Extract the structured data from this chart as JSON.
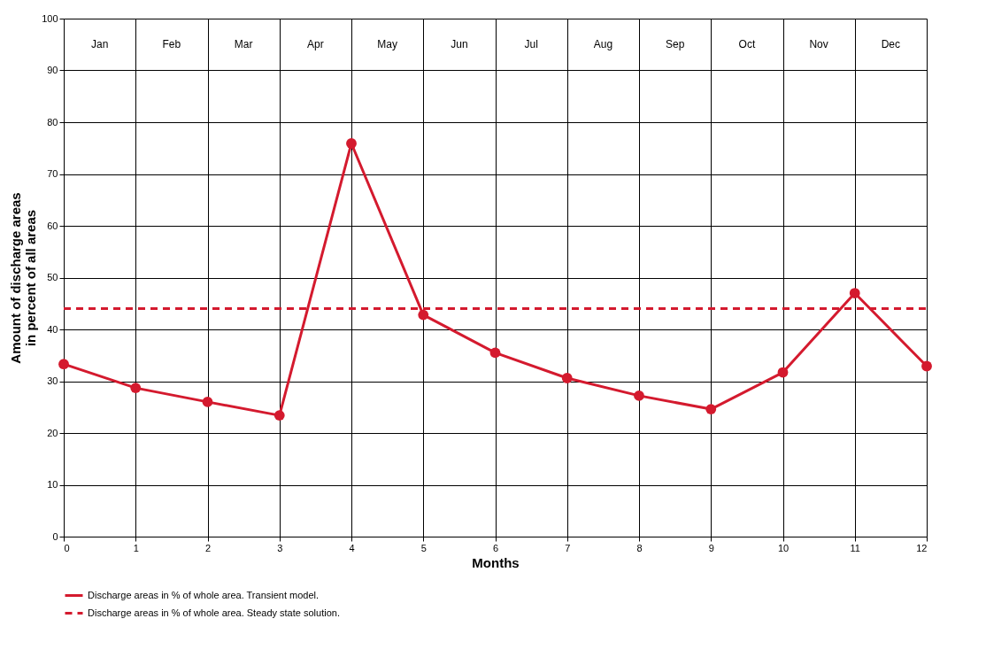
{
  "chart_data": {
    "type": "line",
    "xlabel": "Months",
    "ylabel": "Amount of discharge areas\nin percent of all areas",
    "xlim": [
      0,
      12
    ],
    "xticks": [
      0,
      1,
      2,
      3,
      4,
      5,
      6,
      7,
      8,
      9,
      10,
      11,
      12
    ],
    "ylim": [
      0,
      100
    ],
    "yticks": [
      0,
      10,
      20,
      30,
      40,
      50,
      60,
      70,
      80,
      90,
      100
    ],
    "grid": true,
    "legend": "bottom",
    "series": [
      {
        "name": "Discharge areas in % of whole area. Transient model.",
        "color": "#d41a2e",
        "marker": "circle",
        "line_style": "solid",
        "x": [
          0,
          1,
          2,
          3,
          4,
          5,
          6,
          7,
          8,
          9,
          10,
          11,
          12
        ],
        "values": [
          33.3,
          28.7,
          26,
          23.4,
          75.9,
          42.8,
          35.5,
          30.6,
          27.2,
          24.6,
          31.7,
          47,
          32.9
        ]
      },
      {
        "name": "Discharge areas in % of whole area. Steady state solution.",
        "color": "#d41a2e",
        "marker": "none",
        "line_style": "dashed",
        "x": [
          0,
          12
        ],
        "values": [
          44,
          44
        ]
      }
    ],
    "annotations": [
      "Jan",
      "Feb",
      "Mar",
      "Apr",
      "May",
      "Jun",
      "Jul",
      "Aug",
      "Sep",
      "Oct",
      "Nov",
      "Dec"
    ]
  }
}
